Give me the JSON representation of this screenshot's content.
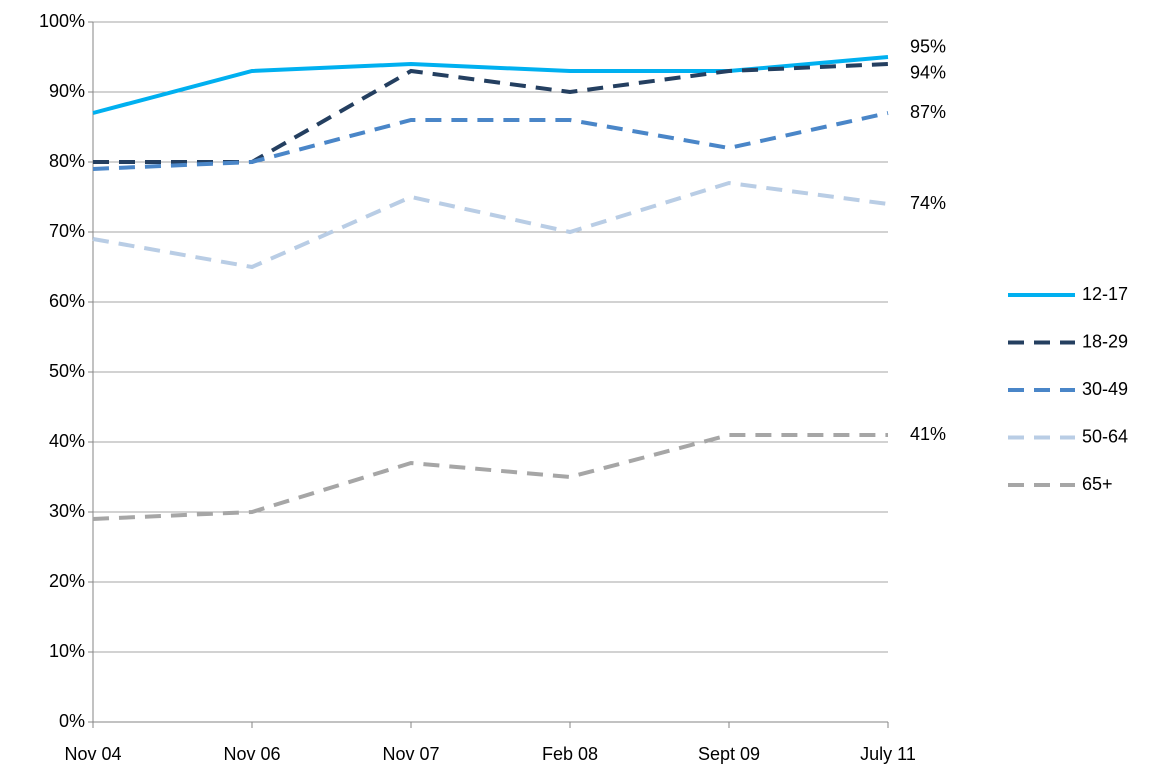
{
  "chart_data": {
    "type": "line",
    "categories": [
      "Nov 04",
      "Nov 06",
      "Nov 07",
      "Feb 08",
      "Sept 09",
      "July 11"
    ],
    "series": [
      {
        "name": "12-17",
        "color": "#00b0f0",
        "dashed": false,
        "values": [
          87,
          93,
          94,
          93,
          93,
          95
        ],
        "value_labels": [
          null,
          null,
          null,
          null,
          null,
          "95%"
        ]
      },
      {
        "name": "18-29",
        "color": "#243f60",
        "dashed": true,
        "values": [
          80,
          80,
          93,
          90,
          93,
          94
        ],
        "value_labels": [
          null,
          null,
          null,
          null,
          null,
          "94%"
        ]
      },
      {
        "name": "30-49",
        "color": "#4a86c8",
        "dashed": true,
        "values": [
          79,
          80,
          86,
          86,
          82,
          87
        ],
        "value_labels": [
          null,
          null,
          null,
          null,
          null,
          "87%"
        ]
      },
      {
        "name": "50-64",
        "color": "#b9cde5",
        "dashed": true,
        "values": [
          69,
          65,
          75,
          70,
          77,
          74
        ],
        "value_labels": [
          null,
          null,
          null,
          null,
          null,
          "74%"
        ]
      },
      {
        "name": "65+",
        "color": "#a6a6a6",
        "dashed": true,
        "values": [
          29,
          30,
          37,
          35,
          41,
          41
        ],
        "value_labels": [
          null,
          null,
          null,
          null,
          null,
          "41%"
        ]
      }
    ],
    "ylim": [
      0,
      100
    ],
    "yticks": [
      {
        "value": 0,
        "label": "0%"
      },
      {
        "value": 10,
        "label": "10%"
      },
      {
        "value": 20,
        "label": "20%"
      },
      {
        "value": 30,
        "label": "30%"
      },
      {
        "value": 40,
        "label": "40%"
      },
      {
        "value": 50,
        "label": "50%"
      },
      {
        "value": 60,
        "label": "60%"
      },
      {
        "value": 70,
        "label": "70%"
      },
      {
        "value": 80,
        "label": "80%"
      },
      {
        "value": 90,
        "label": "90%"
      },
      {
        "value": 100,
        "label": "100%"
      }
    ],
    "grid": true,
    "legend": "right"
  }
}
